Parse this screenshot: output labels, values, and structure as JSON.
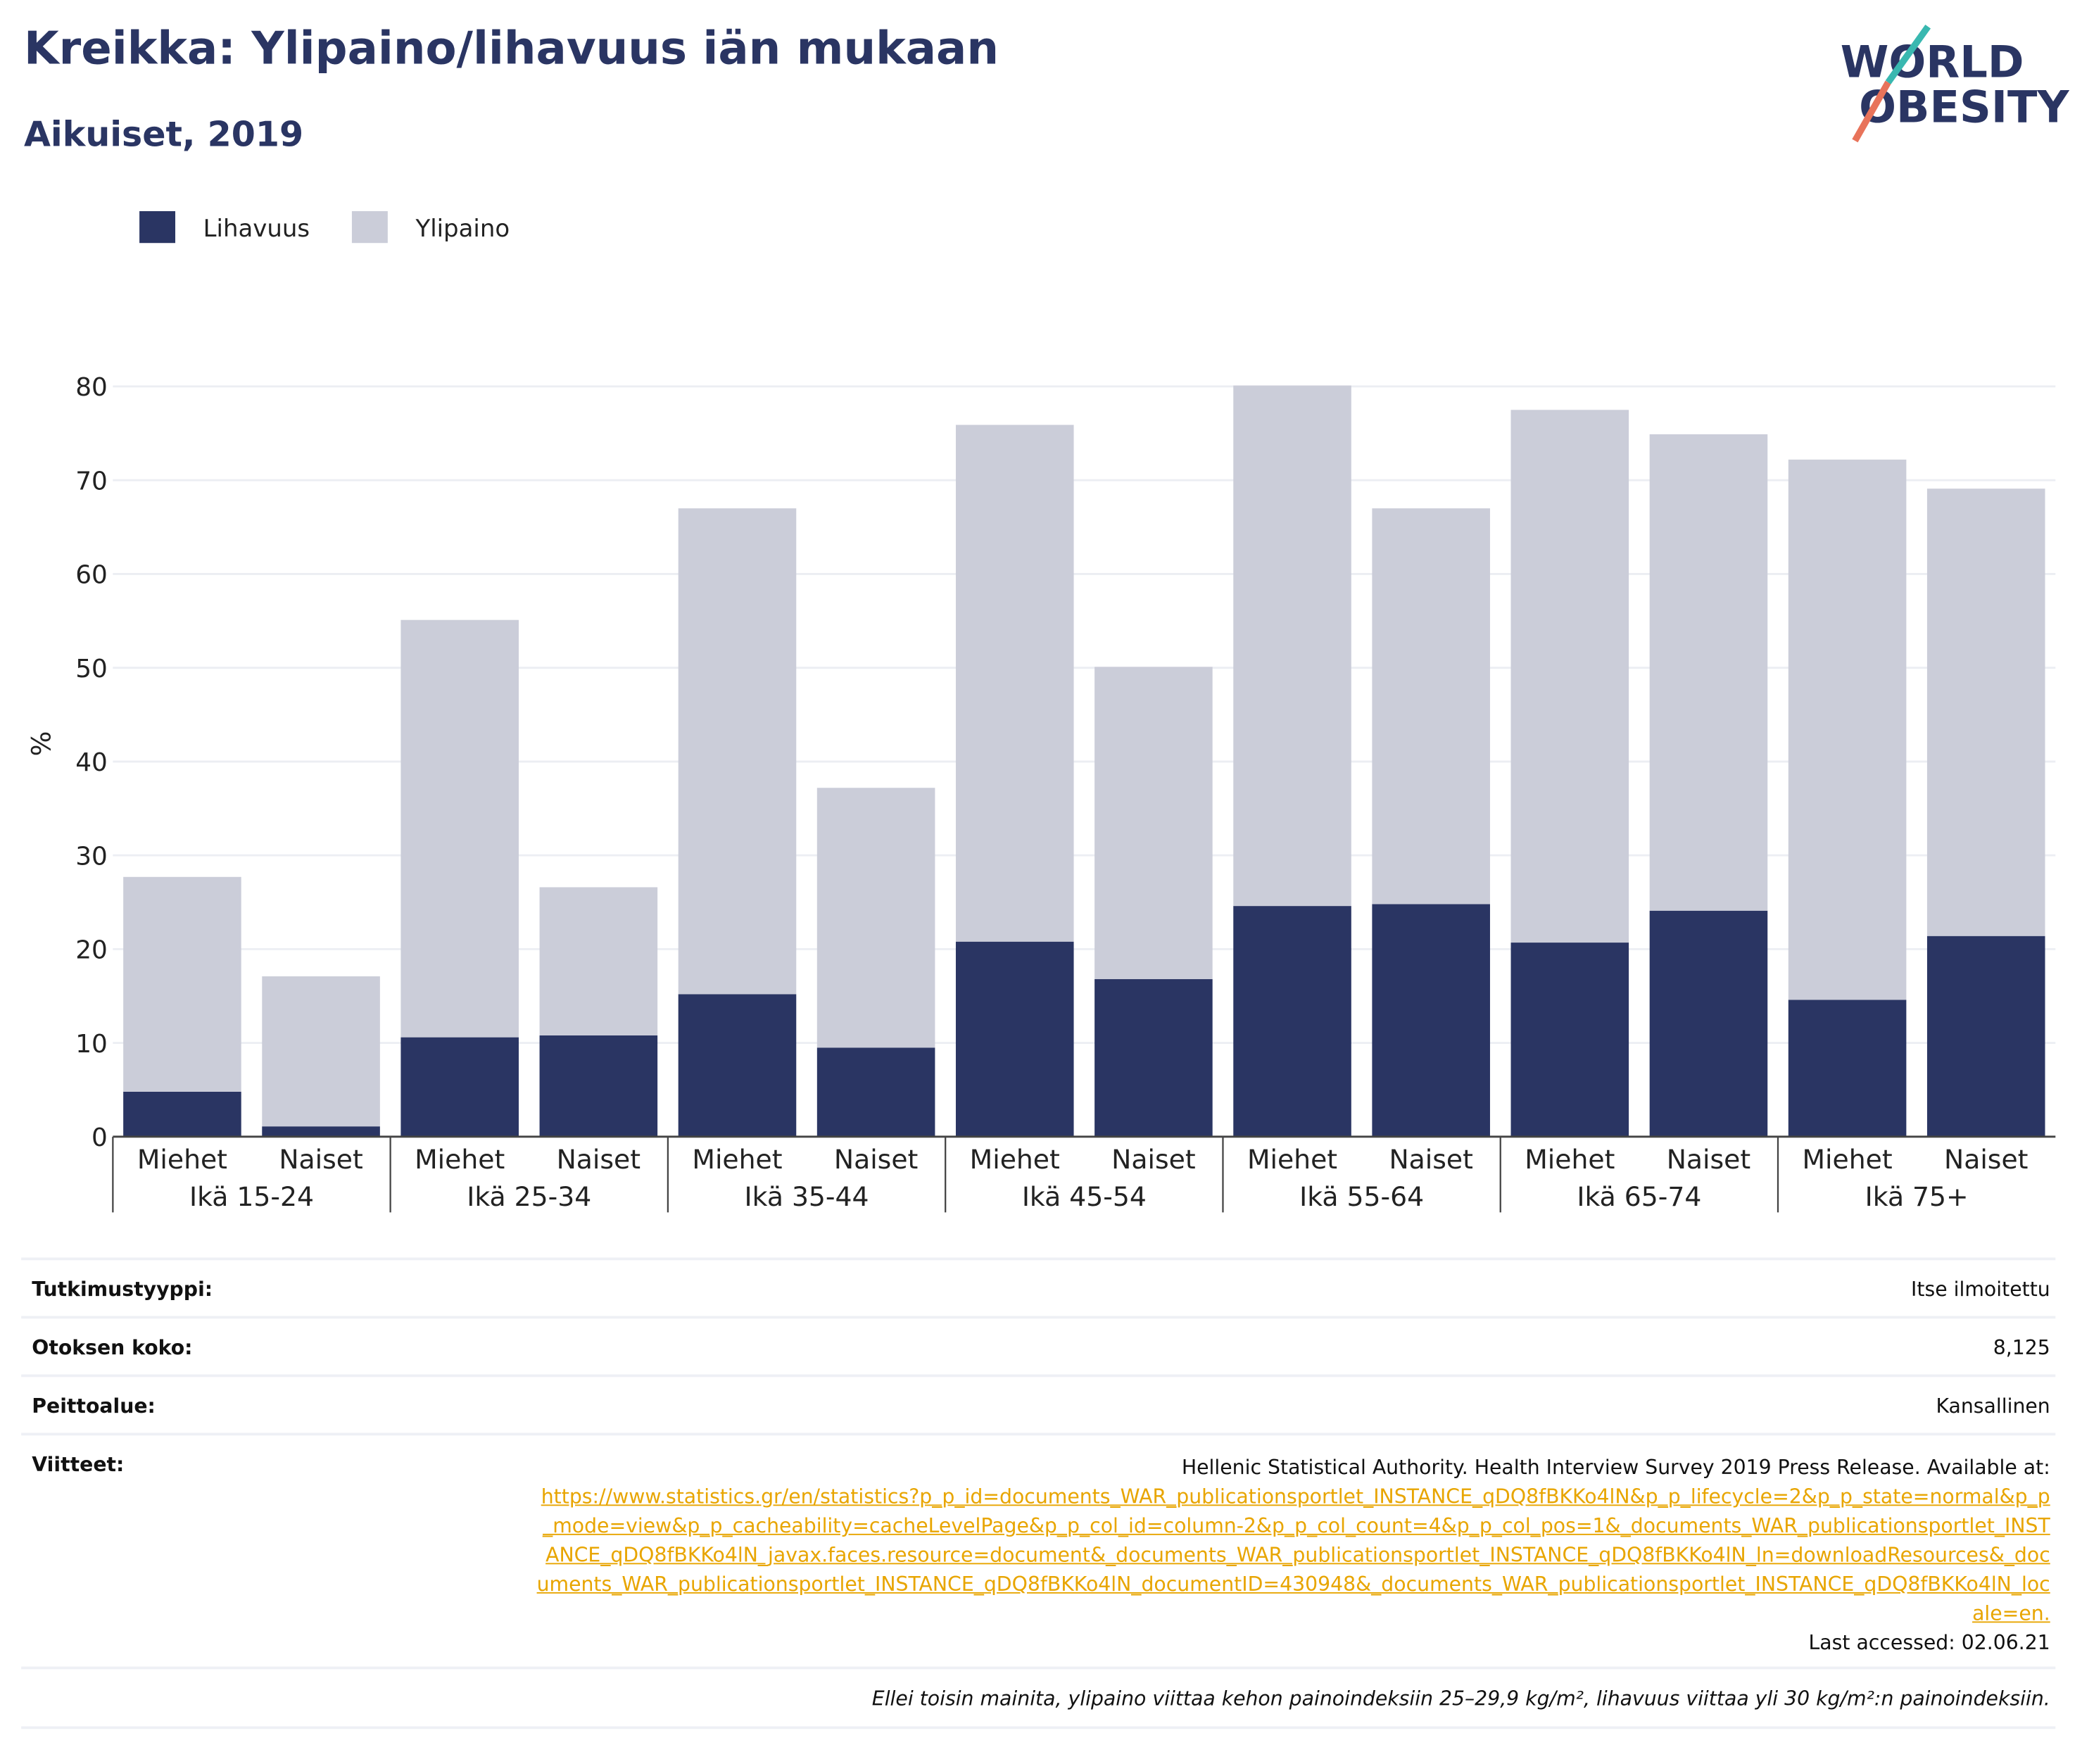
{
  "logo": [
    "WORLD",
    "OBESITY"
  ],
  "chart_data": {
    "type": "stacked_bar",
    "title": "Kreikka: Ylipaino/lihavuus iän mukaan",
    "subtitle": "Aikuiset, 2019",
    "y_label": "%",
    "categories": [
      "Miehet",
      "Naiset",
      "Miehet",
      "Naiset",
      "Miehet",
      "Naiset",
      "Miehet",
      "Naiset",
      "Miehet",
      "Naiset",
      "Miehet",
      "Naiset",
      "Miehet",
      "Naiset"
    ],
    "groups": [
      "Ikä 15-24",
      "Ikä 25-34",
      "Ikä 35-44",
      "Ikä 45-54",
      "Ikä 55-64",
      "Ikä 65-74",
      "Ikä 75+"
    ],
    "series": [
      {
        "name": "Lihavuus",
        "color": "#2a3563",
        "values": [
          4.8,
          1.1,
          10.6,
          10.8,
          15.2,
          9.5,
          20.8,
          16.8,
          24.6,
          24.8,
          20.7,
          24.1,
          14.6,
          21.4
        ]
      },
      {
        "name": "Ylipaino",
        "color": "#cbcdd9",
        "values": [
          22.9,
          16.0,
          44.5,
          15.8,
          51.8,
          27.7,
          55.1,
          33.3,
          55.5,
          42.2,
          56.8,
          50.8,
          57.6,
          47.7
        ]
      }
    ],
    "ylim": [
      0,
      80
    ],
    "yticks": [
      0,
      10,
      20,
      30,
      40,
      50,
      60,
      70,
      80
    ],
    "grid": true,
    "legend": "top-left"
  },
  "table": {
    "rows": [
      [
        "Tutkimustyyppi:",
        "Itse ilmoitettu"
      ],
      [
        "Otoksen koko:",
        "8,125"
      ],
      [
        "Peittoalue:",
        "Kansallinen"
      ]
    ],
    "references": {
      "label": "Viitteet:",
      "text": "Hellenic Statistical Authority. Health Interview Survey 2019 Press Release. Available at:",
      "link": "https://www.statistics.gr/en/statistics?p_p_id=documents_WAR_publicationsportlet_INSTANCE_qDQ8fBKKo4lN&p_p_lifecycle=2&p_p_state=normal&p_p_mode=view&p_p_cacheability=cacheLevelPage&p_p_col_id=column-2&p_p_col_count=4&p_p_col_pos=1&_documents_WAR_publicationsportlet_INSTANCE_qDQ8fBKKo4lN_javax.faces.resource=document&_documents_WAR_publicationsportlet_INSTANCE_qDQ8fBKKo4lN_ln=downloadResources&_documents_WAR_publicationsportlet_INSTANCE_qDQ8fBKKo4lN_documentID=430948&_documents_WAR_publicationsportlet_INSTANCE_qDQ8fBKKo4lN_locale=en.",
      "accessed": "Last accessed: 02.06.21"
    },
    "note": "Ellei toisin mainita, ylipaino viittaa kehon painoindeksiin 25–29,9 kg/m², lihavuus viittaa yli 30 kg/m²:n painoindeksiin."
  }
}
